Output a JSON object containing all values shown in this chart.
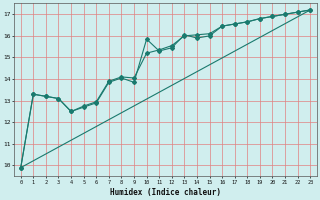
{
  "xlabel": "Humidex (Indice chaleur)",
  "background_color": "#d0eeee",
  "grid_color": "#e08080",
  "line_color": "#1a7a6e",
  "x_min": -0.5,
  "x_max": 23.5,
  "y_min": 9.5,
  "y_max": 17.5,
  "yticks": [
    10,
    11,
    12,
    13,
    14,
    15,
    16,
    17
  ],
  "xticks": [
    0,
    1,
    2,
    3,
    4,
    5,
    6,
    7,
    8,
    9,
    10,
    11,
    12,
    13,
    14,
    15,
    16,
    17,
    18,
    19,
    20,
    21,
    22,
    23
  ],
  "line1_x": [
    0,
    1,
    2,
    3,
    4,
    5,
    6,
    7,
    8,
    9,
    10,
    11,
    12,
    13,
    14,
    15,
    16,
    17,
    18,
    19,
    20,
    21,
    22,
    23
  ],
  "line1_y": [
    9.9,
    13.3,
    13.2,
    13.1,
    12.5,
    12.7,
    12.9,
    13.85,
    14.05,
    13.85,
    15.85,
    15.3,
    15.45,
    16.05,
    15.9,
    16.0,
    16.45,
    16.55,
    16.65,
    16.8,
    16.9,
    17.0,
    17.1,
    17.2
  ],
  "line2_x": [
    0,
    1,
    2,
    3,
    4,
    5,
    6,
    7,
    8,
    9,
    10,
    11,
    12,
    13,
    14,
    15,
    16,
    17,
    18,
    19,
    20,
    21,
    22,
    23
  ],
  "line2_y": [
    9.9,
    13.3,
    13.2,
    13.1,
    12.5,
    12.75,
    12.95,
    13.9,
    14.1,
    14.05,
    15.2,
    15.35,
    15.55,
    16.0,
    16.05,
    16.1,
    16.45,
    16.55,
    16.65,
    16.8,
    16.9,
    17.0,
    17.1,
    17.2
  ],
  "line3_x": [
    0,
    23
  ],
  "line3_y": [
    9.9,
    17.2
  ]
}
